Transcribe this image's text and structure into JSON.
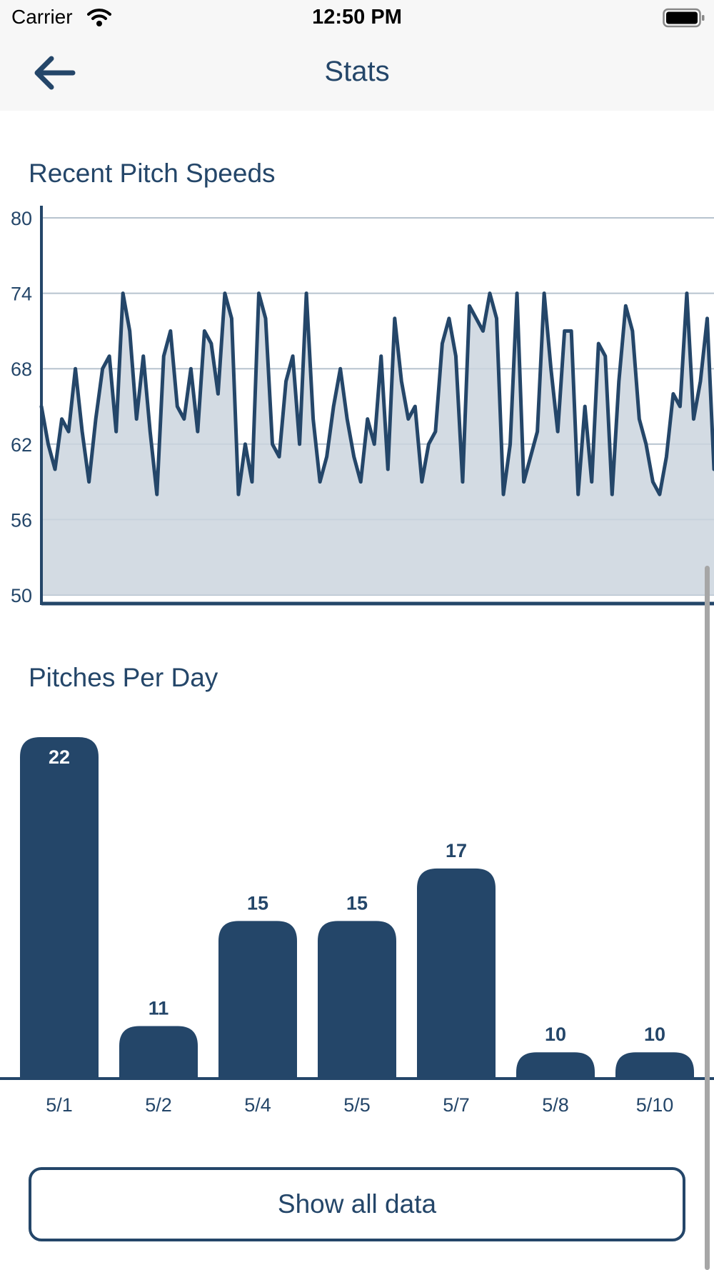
{
  "status_bar": {
    "carrier": "Carrier",
    "time": "12:50 PM"
  },
  "nav": {
    "title": "Stats",
    "back_icon": "arrow-left-icon"
  },
  "colors": {
    "primary": "#244669",
    "fill": "#cbd5de",
    "grid": "#b7c3cf",
    "bar_label_inside": "#ffffff"
  },
  "pitch_speed_chart": {
    "title": "Recent Pitch Speeds"
  },
  "pitches_per_day_chart": {
    "title": "Pitches Per Day"
  },
  "chart_data": [
    {
      "type": "area",
      "title": "Recent Pitch Speeds",
      "ylim": [
        50,
        80
      ],
      "y_ticks": [
        50,
        56,
        62,
        68,
        74,
        80
      ],
      "grid": true,
      "values": [
        65,
        62,
        60,
        64,
        63,
        68,
        63,
        59,
        64,
        68,
        69,
        63,
        74,
        71,
        64,
        69,
        63,
        58,
        69,
        71,
        65,
        64,
        68,
        63,
        71,
        70,
        66,
        74,
        72,
        58,
        62,
        59,
        74,
        72,
        62,
        61,
        67,
        69,
        62,
        74,
        64,
        59,
        61,
        65,
        68,
        64,
        61,
        59,
        64,
        62,
        69,
        60,
        72,
        67,
        64,
        65,
        59,
        62,
        63,
        70,
        72,
        69,
        59,
        73,
        72,
        71,
        74,
        72,
        58,
        62,
        74,
        59,
        61,
        63,
        74,
        68,
        63,
        71,
        71,
        58,
        65,
        59,
        70,
        69,
        58,
        67,
        73,
        71,
        64,
        62,
        59,
        58,
        61,
        66,
        65,
        74,
        64,
        67,
        72,
        60
      ]
    },
    {
      "type": "bar",
      "title": "Pitches Per Day",
      "categories": [
        "5/1",
        "5/2",
        "5/4",
        "5/5",
        "5/7",
        "5/8",
        "5/10"
      ],
      "values": [
        22,
        11,
        15,
        15,
        17,
        10,
        10
      ],
      "data_labels": [
        "22",
        "11",
        "15",
        "15",
        "17",
        "10",
        "10"
      ]
    }
  ],
  "actions": {
    "show_all": "Show all data"
  }
}
